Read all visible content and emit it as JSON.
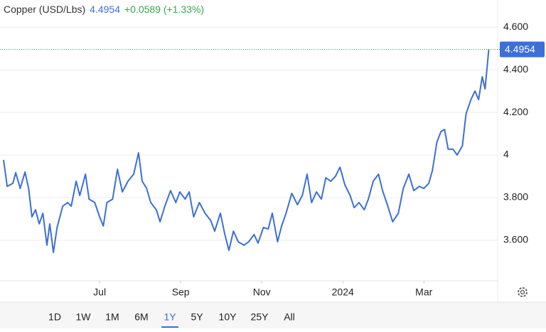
{
  "chart_data": {
    "type": "line",
    "title": "Copper (USD/Lbs)",
    "change": "+0.0589 (+1.33%)",
    "x": [
      4.63,
      4.72,
      4.86,
      4.93,
      5.04,
      5.16,
      5.25,
      5.33,
      5.42,
      5.51,
      5.6,
      5.7,
      5.77,
      5.86,
      5.95,
      6.09,
      6.21,
      6.3,
      6.42,
      6.51,
      6.65,
      6.74,
      6.88,
      7.0,
      7.09,
      7.18,
      7.32,
      7.44,
      7.56,
      7.7,
      7.84,
      7.96,
      8.05,
      8.16,
      8.26,
      8.4,
      8.49,
      8.61,
      8.75,
      8.88,
      8.98,
      9.11,
      9.21,
      9.32,
      9.46,
      9.6,
      9.74,
      9.84,
      9.98,
      10.09,
      10.19,
      10.3,
      10.42,
      10.56,
      10.68,
      10.81,
      10.91,
      11.04,
      11.16,
      11.26,
      11.39,
      11.49,
      11.6,
      11.74,
      11.88,
      12.0,
      12.12,
      12.23,
      12.35,
      12.47,
      12.58,
      12.7,
      12.82,
      12.93,
      13.05,
      13.18,
      13.28,
      13.4,
      13.53,
      13.63,
      13.75,
      13.88,
      13.98,
      14.11,
      14.23,
      14.37,
      14.49,
      14.63,
      14.75,
      14.89,
      15.0,
      15.12,
      15.21,
      15.32,
      15.42,
      15.51,
      15.6,
      15.72,
      15.82,
      15.95,
      16.04,
      16.16,
      16.26,
      16.35,
      16.44,
      16.51,
      16.6
    ],
    "series": [
      {
        "name": "Copper",
        "color": "#3c6fd8",
        "values": [
          3.977,
          3.853,
          3.867,
          3.917,
          3.843,
          3.92,
          3.843,
          3.71,
          3.743,
          3.677,
          3.727,
          3.577,
          3.677,
          3.543,
          3.66,
          3.76,
          3.777,
          3.76,
          3.877,
          3.81,
          3.91,
          3.793,
          3.777,
          3.71,
          3.667,
          3.777,
          3.793,
          3.933,
          3.827,
          3.877,
          3.91,
          4.01,
          3.877,
          3.843,
          3.777,
          3.743,
          3.687,
          3.76,
          3.833,
          3.777,
          3.827,
          3.793,
          3.827,
          3.71,
          3.777,
          3.727,
          3.693,
          3.643,
          3.727,
          3.627,
          3.553,
          3.643,
          3.593,
          3.577,
          3.593,
          3.627,
          3.587,
          3.66,
          3.653,
          3.727,
          3.593,
          3.667,
          3.727,
          3.82,
          3.767,
          3.81,
          3.91,
          3.777,
          3.827,
          3.793,
          3.893,
          3.877,
          3.9,
          3.943,
          3.86,
          3.81,
          3.753,
          3.777,
          3.743,
          3.793,
          3.877,
          3.91,
          3.833,
          3.76,
          3.687,
          3.727,
          3.843,
          3.91,
          3.833,
          3.853,
          3.843,
          3.867,
          3.927,
          4.06,
          4.11,
          4.12,
          4.027,
          4.027,
          4.0,
          4.043,
          4.193,
          4.26,
          4.3,
          4.26,
          4.367,
          4.31,
          4.4954
        ]
      }
    ],
    "xlim": [
      4.63,
      16.82
    ],
    "xticks": [
      {
        "value": 7,
        "label": "Jul"
      },
      {
        "value": 9,
        "label": "Sep"
      },
      {
        "value": 11,
        "label": "Nov"
      },
      {
        "value": 13,
        "label": "2024"
      },
      {
        "value": 15,
        "label": "Mar"
      }
    ],
    "ylim": [
      3.41,
      4.727
    ],
    "yticks": [
      {
        "value": 3.6,
        "label": "3.600"
      },
      {
        "value": 3.8,
        "label": "3.800"
      },
      4,
      {
        "value": 4.2,
        "label": "4.200"
      },
      {
        "value": 4.4,
        "label": "4.400"
      },
      {
        "value": 4.6,
        "label": "4.600"
      }
    ],
    "grid": true,
    "ranges": [
      "1D",
      "1W",
      "1M",
      "6M",
      "1Y",
      "5Y",
      "10Y",
      "25Y",
      "All"
    ],
    "selected_range": "1Y"
  }
}
